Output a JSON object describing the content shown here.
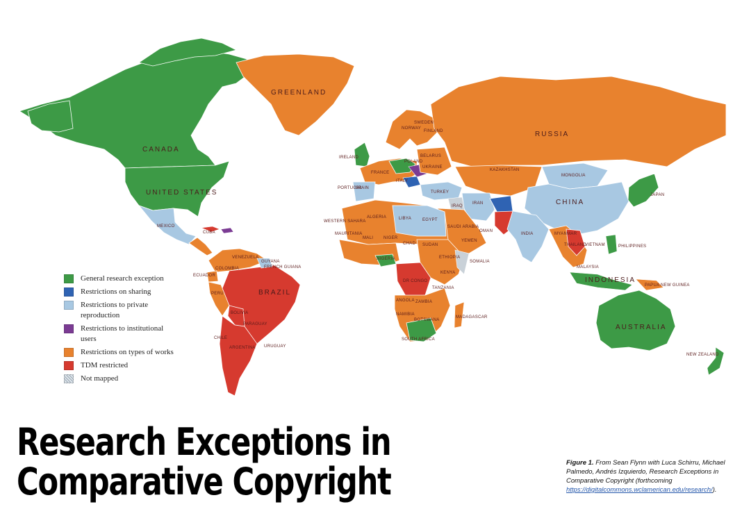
{
  "colors": {
    "general_research_exception": "#3d9a46",
    "restrictions_on_sharing": "#2f63b3",
    "restrictions_to_private_reproduction": "#a8c8e2",
    "restrictions_to_institutional_users": "#7b3b93",
    "restrictions_on_types_of_works": "#e8822e",
    "tdm_restricted": "#d63a2f",
    "not_mapped": "#c9d1d8"
  },
  "legend": [
    {
      "label": "General research exception",
      "color": "#3d9a46"
    },
    {
      "label": "Restrictions on sharing",
      "color": "#2f63b3"
    },
    {
      "label": "Restrictions to private reproduction",
      "color": "#a8c8e2"
    },
    {
      "label": "Restrictions to institutional users",
      "color": "#7b3b93"
    },
    {
      "label": "Restrictions on types of works",
      "color": "#e8822e"
    },
    {
      "label": "TDM restricted",
      "color": "#d63a2f"
    },
    {
      "label": "Not mapped",
      "color": "#c9d1d8",
      "pattern": "hatched"
    }
  ],
  "map_labels": {
    "greenland": "GREENLAND",
    "canada": "CANADA",
    "united_states": "UNITED STATES",
    "mexico": "MEXICO",
    "cuba": "CUBA",
    "brazil": "BRAZIL",
    "colombia": "COLOMBIA",
    "venezuela": "VENEZUELA",
    "ecuador": "ECUADOR",
    "peru": "PERU",
    "bolivia": "BOLIVIA",
    "paraguay": "PARAGUAY",
    "chile": "CHILE",
    "argentina": "ARGENTINA",
    "uruguay": "URUGUAY",
    "guyana": "GUYANA",
    "french_guiana": "FRENCH GUIANA",
    "russia": "RUSSIA",
    "kazakhstan": "KAZAKHSTAN",
    "mongolia": "MONGOLIA",
    "china": "CHINA",
    "india": "INDIA",
    "iran": "IRAN",
    "iraq": "IRAQ",
    "turkey": "TURKEY",
    "ukraine": "UKRAINE",
    "belarus": "BELARUS",
    "poland": "POLAND",
    "finland": "FINLAND",
    "sweden": "SWEDEN",
    "norway": "NORWAY",
    "france": "FRANCE",
    "spain": "SPAIN",
    "portugal": "PORTUGAL",
    "ireland": "IRELAND",
    "italy": "ITALY",
    "japan": "JAPAN",
    "philippines": "PHILIPPINES",
    "indonesia": "INDONESIA",
    "australia": "AUSTRALIA",
    "new_zealand": "NEW ZEALAND",
    "papua_new_guinea": "PAPUA NEW GUINEA",
    "algeria": "ALGERIA",
    "libya": "LIBYA",
    "egypt": "EGYPT",
    "western_sahara": "WESTERN SAHARA",
    "mauritania": "MAURITANIA",
    "mali": "MALI",
    "niger": "NIGER",
    "chad": "CHAD",
    "sudan": "SUDAN",
    "nigeria": "NIGERIA",
    "ethiopia": "ETHIOPIA",
    "somalia": "SOMALIA",
    "kenya": "KENYA",
    "dr_congo": "DR CONGO",
    "tanzania": "TANZANIA",
    "angola": "ANGOLA",
    "zambia": "ZAMBIA",
    "namibia": "NAMIBIA",
    "botswana": "BOTSWANA",
    "madagascar": "MADAGASCAR",
    "south_africa": "SOUTH AFRICA",
    "saudi_arabia": "SAUDI ARABIA",
    "yemen": "YEMEN",
    "oman": "OMAN",
    "myanmar": "MYANMAR",
    "thailand": "THAILAND",
    "vietnam": "VIETNAM",
    "malaysia": "MALAYSIA"
  },
  "title_line1": "Research Exceptions in",
  "title_line2": "Comparative Copyright",
  "caption": {
    "figure_label": "Figure 1.",
    "text": " From Sean Flynn with Luca Schirru, Michael Palmedo, Andrés Izquierdo, Research Exceptions in Comparative Copyright (forthcoming ",
    "link": "https://digitalcommons.wclamerican.edu/research/",
    "end": ")."
  }
}
